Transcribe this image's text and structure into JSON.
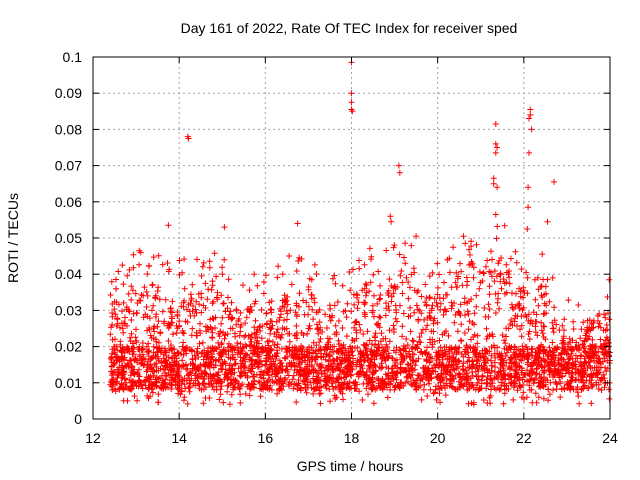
{
  "chart_data": {
    "type": "scatter",
    "title": "Day 161 of 2022, Rate Of TEC Index for receiver sped",
    "xlabel": "GPS time / hours",
    "ylabel": "ROTI / TECUs",
    "xlim": [
      12,
      24
    ],
    "ylim": [
      0,
      0.1
    ],
    "x_ticks": [
      12,
      14,
      16,
      18,
      20,
      22,
      24
    ],
    "y_ticks": [
      0,
      0.01,
      0.02,
      0.03,
      0.04,
      0.05,
      0.06,
      0.07,
      0.08,
      0.09,
      0.1
    ],
    "grid": true,
    "marker": "plus",
    "color": "#ff0000",
    "outliers": [
      {
        "x": 14.2,
        "y": 0.078
      },
      {
        "x": 14.22,
        "y": 0.0775
      },
      {
        "x": 18.0,
        "y": 0.0985
      },
      {
        "x": 18.0,
        "y": 0.09
      },
      {
        "x": 18.0,
        "y": 0.0875
      },
      {
        "x": 18.0,
        "y": 0.0855
      },
      {
        "x": 18.02,
        "y": 0.085
      },
      {
        "x": 19.1,
        "y": 0.07
      },
      {
        "x": 19.12,
        "y": 0.068
      },
      {
        "x": 21.35,
        "y": 0.0815
      },
      {
        "x": 21.35,
        "y": 0.076
      },
      {
        "x": 21.38,
        "y": 0.075
      },
      {
        "x": 21.35,
        "y": 0.0735
      },
      {
        "x": 21.3,
        "y": 0.0665
      },
      {
        "x": 21.3,
        "y": 0.065
      },
      {
        "x": 21.38,
        "y": 0.064
      },
      {
        "x": 21.35,
        "y": 0.0565
      },
      {
        "x": 22.15,
        "y": 0.0855
      },
      {
        "x": 22.15,
        "y": 0.084
      },
      {
        "x": 22.12,
        "y": 0.083
      },
      {
        "x": 22.18,
        "y": 0.08
      },
      {
        "x": 22.12,
        "y": 0.0735
      },
      {
        "x": 22.1,
        "y": 0.064
      },
      {
        "x": 22.1,
        "y": 0.0585
      },
      {
        "x": 22.08,
        "y": 0.0525
      },
      {
        "x": 22.7,
        "y": 0.0655
      },
      {
        "x": 13.75,
        "y": 0.0535
      },
      {
        "x": 15.05,
        "y": 0.053
      },
      {
        "x": 16.75,
        "y": 0.054
      },
      {
        "x": 18.9,
        "y": 0.056
      },
      {
        "x": 18.92,
        "y": 0.0545
      },
      {
        "x": 19.5,
        "y": 0.0505
      },
      {
        "x": 20.6,
        "y": 0.0505
      },
      {
        "x": 22.55,
        "y": 0.0545
      }
    ]
  }
}
